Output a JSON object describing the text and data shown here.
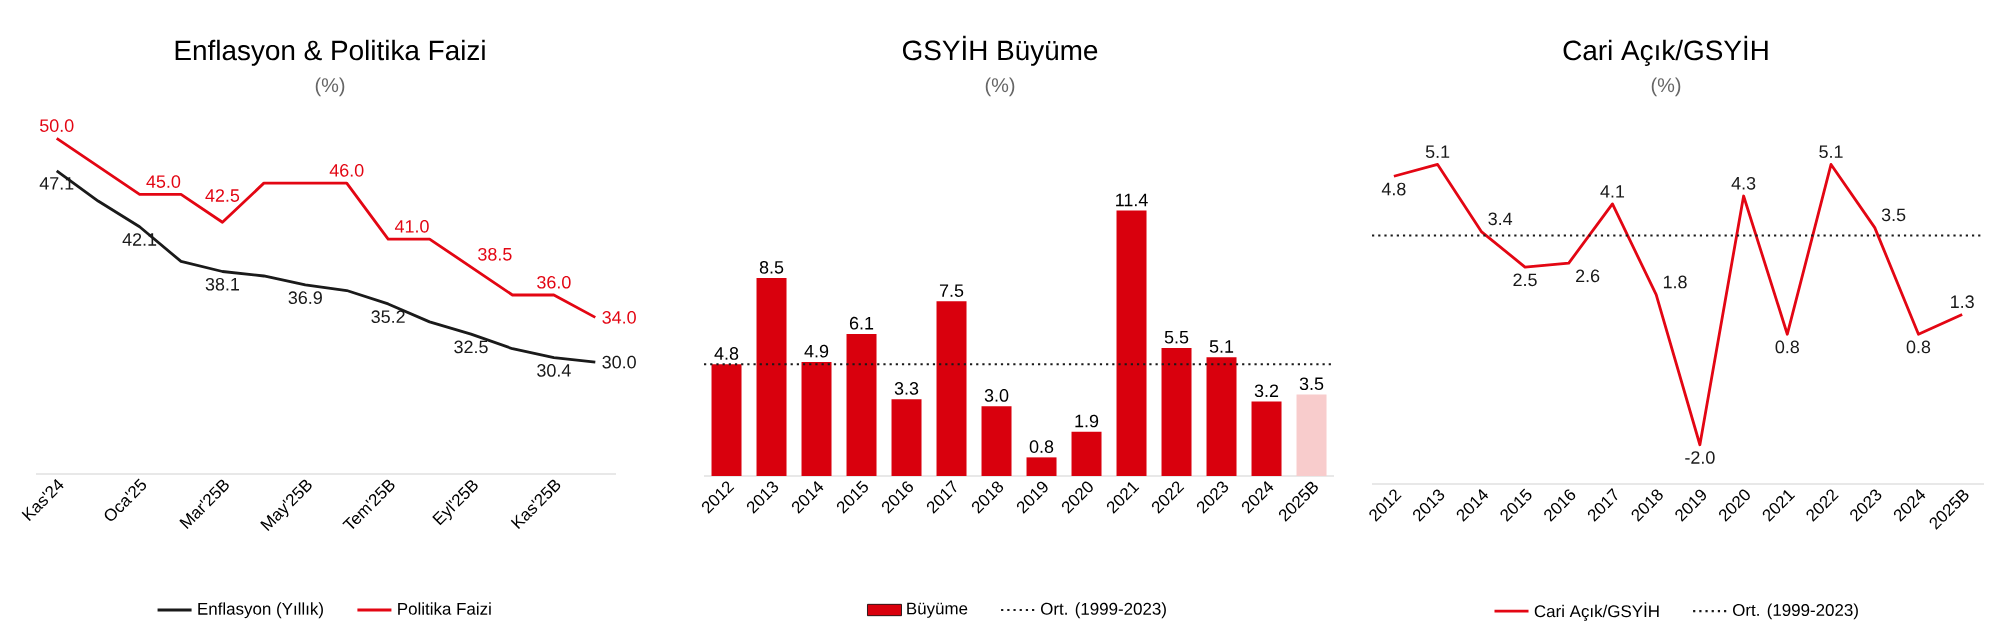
{
  "chart_data": [
    {
      "type": "line",
      "title": "Enflasyon & Politika Faizi",
      "subtitle": "(%)",
      "categories": [
        "Kas'24",
        null,
        "Oca'25",
        null,
        "Mar'25B",
        null,
        "May'25B",
        null,
        "Tem'25B",
        null,
        "Eyl'25B",
        null,
        "Kas'25B",
        null
      ],
      "series": [
        {
          "name": "Enflasyon (Yıllık)",
          "color": "#1a1a1a",
          "values": [
            47.1,
            44.4,
            42.1,
            39.0,
            38.1,
            37.7,
            36.9,
            36.4,
            35.2,
            33.6,
            32.5,
            31.2,
            30.4,
            30.0
          ],
          "value_labels": [
            "47.1",
            null,
            "42.1",
            null,
            "38.1",
            null,
            "36.9",
            null,
            "35.2",
            null,
            "32.5",
            null,
            "30.4",
            "30.0"
          ]
        },
        {
          "name": "Politika Faizi",
          "color": "#e30613",
          "values": [
            50.0,
            47.5,
            45.0,
            45.0,
            42.5,
            46.0,
            46.0,
            46.0,
            41.0,
            41.0,
            38.5,
            36.0,
            36.0,
            34.0
          ],
          "value_labels": [
            "50.0",
            null,
            "45.0",
            null,
            "42.5",
            null,
            null,
            "46.0",
            "41.0",
            null,
            "38.5",
            null,
            "36.0",
            "34.0"
          ]
        }
      ],
      "tick_labels": "x",
      "legend": "bottom"
    },
    {
      "type": "bar",
      "title": "GSYİH Büyüme",
      "subtitle": "(%)",
      "categories": [
        "2012",
        "2013",
        "2014",
        "2015",
        "2016",
        "2017",
        "2018",
        "2019",
        "2020",
        "2021",
        "2022",
        "2023",
        "2024",
        "2025B"
      ],
      "series": [
        {
          "name": "Büyüme",
          "color": "#d9000d",
          "colors": [
            "#d9000d",
            "#d9000d",
            "#d9000d",
            "#d9000d",
            "#d9000d",
            "#d9000d",
            "#d9000d",
            "#d9000d",
            "#d9000d",
            "#d9000d",
            "#d9000d",
            "#d9000d",
            "#d9000d",
            "#f8cccc"
          ],
          "values": [
            4.8,
            8.5,
            4.9,
            6.1,
            3.3,
            7.5,
            3.0,
            0.8,
            1.9,
            11.4,
            5.5,
            5.1,
            3.2,
            3.5
          ],
          "value_labels": [
            "4.8",
            "8.5",
            "4.9",
            "6.1",
            "3.3",
            "7.5",
            "3.0",
            "0.8",
            "1.9",
            "11.4",
            "5.5",
            "5.1",
            "3.2",
            "3.5"
          ]
        }
      ],
      "ref_lines": [
        {
          "axis": "y",
          "value": 4.8,
          "label": "Ort. (1999-2023)",
          "color": "#1a1a1a",
          "line_style": "dotted"
        }
      ],
      "tick_labels": "x",
      "legend": "bottom"
    },
    {
      "type": "line",
      "title": "Cari Açık/GSYİH",
      "subtitle": "(%)",
      "categories": [
        "2012",
        "2013",
        "2014",
        "2015",
        "2016",
        "2017",
        "2018",
        "2019",
        "2020",
        "2021",
        "2022",
        "2023",
        "2024",
        "2025B"
      ],
      "series": [
        {
          "name": "Cari Açık/GSYİH",
          "color": "#e30613",
          "values": [
            4.8,
            5.1,
            3.4,
            2.5,
            2.6,
            4.1,
            1.8,
            -2.0,
            4.3,
            0.8,
            5.1,
            3.5,
            0.8,
            1.3
          ],
          "value_labels": [
            "4.8",
            "5.1",
            "3.4",
            "2.5",
            "2.6",
            "4.1",
            "1.8",
            "-2.0",
            "4.3",
            "0.8",
            "5.1",
            "3.5",
            "0.8",
            "1.3"
          ]
        }
      ],
      "ref_lines": [
        {
          "axis": "y",
          "value": 3.3,
          "label": "Ort. (1999-2023)",
          "color": "#1a1a1a",
          "line_style": "dotted"
        }
      ],
      "tick_labels": "x",
      "legend": "bottom"
    }
  ]
}
